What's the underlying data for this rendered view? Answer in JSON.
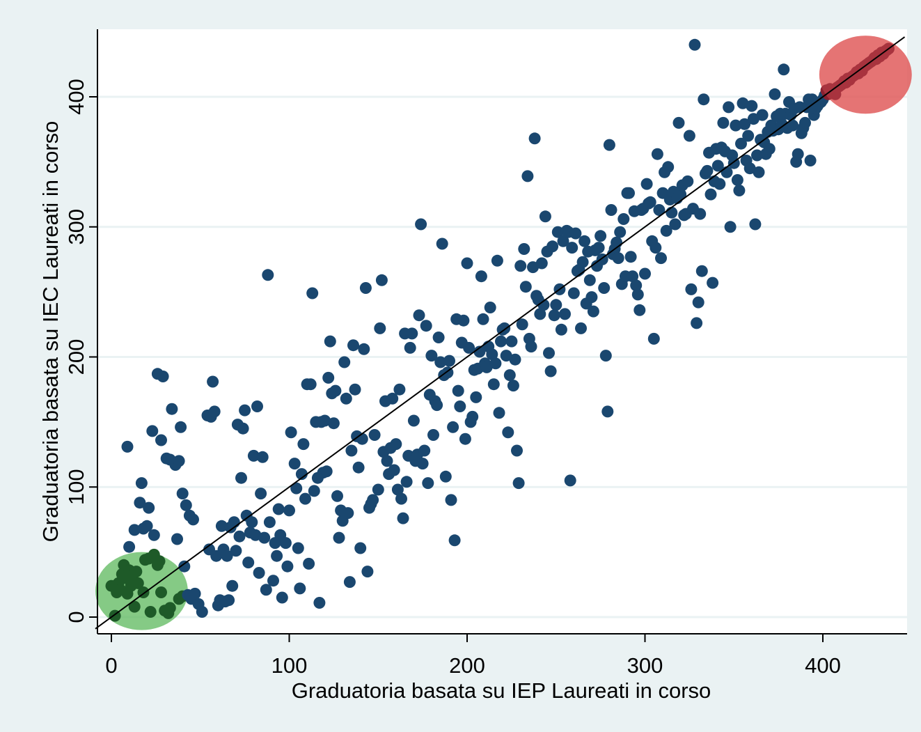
{
  "chart_data": {
    "type": "scatter",
    "title": "",
    "xlabel": "Graduatoria basata su IEP Laureati in corso",
    "ylabel": "Graduatoria basata su IEC Laureati in corso",
    "xlim": [
      -9,
      446
    ],
    "ylim": [
      -13,
      453
    ],
    "xticks": [
      0,
      100,
      200,
      300,
      400
    ],
    "yticks": [
      0,
      100,
      200,
      300,
      400
    ],
    "grid": true,
    "legend": "none",
    "colors": {
      "background": "#eaf2f3",
      "plot_area": "#ffffff",
      "points": "#1a476f",
      "gridline": "#eaf2f3",
      "reference_line": "#000000",
      "low_cluster_fill": "#5cb85c",
      "low_cluster_points": "#1e5a28",
      "high_cluster_fill": "#e05a5a",
      "high_cluster_points": "#8a2030"
    },
    "reference_line": {
      "x": [
        -9,
        446
      ],
      "y": [
        -9,
        446
      ]
    },
    "highlights": [
      {
        "name": "low-rank-cluster",
        "cx": 17,
        "cy": 20,
        "rx": 26,
        "ry": 30
      },
      {
        "name": "high-rank-cluster",
        "cx": 424,
        "cy": 417,
        "rx": 26,
        "ry": 30
      }
    ],
    "points": [
      [
        0,
        24
      ],
      [
        2,
        1
      ],
      [
        3,
        19
      ],
      [
        4,
        26
      ],
      [
        5,
        21
      ],
      [
        6,
        33
      ],
      [
        7,
        40
      ],
      [
        8,
        30
      ],
      [
        9,
        18
      ],
      [
        10,
        36
      ],
      [
        11,
        24
      ],
      [
        12,
        32
      ],
      [
        13,
        8
      ],
      [
        14,
        35
      ],
      [
        15,
        26
      ],
      [
        18,
        19
      ],
      [
        19,
        44
      ],
      [
        21,
        45
      ],
      [
        22,
        4
      ],
      [
        24,
        48
      ],
      [
        26,
        40
      ],
      [
        27,
        43
      ],
      [
        28,
        19
      ],
      [
        30,
        5
      ],
      [
        32,
        3
      ],
      [
        33,
        7
      ],
      [
        38,
        14
      ],
      [
        40,
        16
      ],
      [
        41,
        39
      ],
      [
        43,
        17
      ],
      [
        45,
        14
      ],
      [
        47,
        18
      ],
      [
        49,
        10
      ],
      [
        51,
        4
      ],
      [
        10,
        54
      ],
      [
        13,
        67
      ],
      [
        16,
        88
      ],
      [
        17,
        103
      ],
      [
        18,
        68
      ],
      [
        20,
        70
      ],
      [
        21,
        84
      ],
      [
        23,
        143
      ],
      [
        24,
        63
      ],
      [
        26,
        187
      ],
      [
        28,
        136
      ],
      [
        29,
        185
      ],
      [
        31,
        122
      ],
      [
        33,
        121
      ],
      [
        34,
        160
      ],
      [
        36,
        117
      ],
      [
        37,
        60
      ],
      [
        38,
        120
      ],
      [
        39,
        146
      ],
      [
        40,
        95
      ],
      [
        42,
        86
      ],
      [
        44,
        78
      ],
      [
        46,
        75
      ],
      [
        9,
        131
      ],
      [
        54,
        155
      ],
      [
        55,
        52
      ],
      [
        56,
        154
      ],
      [
        57,
        181
      ],
      [
        58,
        158
      ],
      [
        59,
        47
      ],
      [
        60,
        9
      ],
      [
        61,
        13
      ],
      [
        62,
        70
      ],
      [
        63,
        52
      ],
      [
        64,
        12
      ],
      [
        65,
        47
      ],
      [
        66,
        13
      ],
      [
        67,
        69
      ],
      [
        68,
        24
      ],
      [
        69,
        73
      ],
      [
        70,
        51
      ],
      [
        71,
        148
      ],
      [
        72,
        62
      ],
      [
        73,
        107
      ],
      [
        74,
        145
      ],
      [
        75,
        159
      ],
      [
        76,
        78
      ],
      [
        77,
        42
      ],
      [
        78,
        65
      ],
      [
        79,
        73
      ],
      [
        80,
        124
      ],
      [
        81,
        63
      ],
      [
        82,
        162
      ],
      [
        83,
        34
      ],
      [
        84,
        95
      ],
      [
        85,
        123
      ],
      [
        86,
        61
      ],
      [
        87,
        21
      ],
      [
        88,
        263
      ],
      [
        89,
        73
      ],
      [
        91,
        28
      ],
      [
        92,
        57
      ],
      [
        93,
        47
      ],
      [
        94,
        83
      ],
      [
        95,
        63
      ],
      [
        96,
        15
      ],
      [
        98,
        57
      ],
      [
        99,
        39
      ],
      [
        100,
        82
      ],
      [
        101,
        142
      ],
      [
        103,
        118
      ],
      [
        104,
        99
      ],
      [
        105,
        53
      ],
      [
        106,
        22
      ],
      [
        107,
        110
      ],
      [
        108,
        133
      ],
      [
        109,
        91
      ],
      [
        110,
        179
      ],
      [
        111,
        41
      ],
      [
        112,
        179
      ],
      [
        113,
        249
      ],
      [
        114,
        97
      ],
      [
        115,
        150
      ],
      [
        116,
        107
      ],
      [
        117,
        11
      ],
      [
        118,
        150
      ],
      [
        119,
        111
      ],
      [
        120,
        151
      ],
      [
        121,
        112
      ],
      [
        122,
        184
      ],
      [
        123,
        212
      ],
      [
        124,
        172
      ],
      [
        125,
        149
      ],
      [
        126,
        174
      ],
      [
        127,
        93
      ],
      [
        128,
        61
      ],
      [
        129,
        82
      ],
      [
        130,
        74
      ],
      [
        131,
        196
      ],
      [
        132,
        168
      ],
      [
        133,
        80
      ],
      [
        134,
        27
      ],
      [
        135,
        128
      ],
      [
        136,
        209
      ],
      [
        137,
        175
      ],
      [
        138,
        139
      ],
      [
        139,
        115
      ],
      [
        140,
        53
      ],
      [
        141,
        137
      ],
      [
        142,
        206
      ],
      [
        143,
        253
      ],
      [
        144,
        35
      ],
      [
        145,
        84
      ],
      [
        146,
        87
      ],
      [
        147,
        90
      ],
      [
        148,
        140
      ],
      [
        150,
        98
      ],
      [
        151,
        222
      ],
      [
        152,
        259
      ],
      [
        153,
        127
      ],
      [
        154,
        166
      ],
      [
        155,
        120
      ],
      [
        156,
        110
      ],
      [
        157,
        130
      ],
      [
        158,
        168
      ],
      [
        159,
        113
      ],
      [
        160,
        133
      ],
      [
        161,
        98
      ],
      [
        162,
        175
      ],
      [
        163,
        91
      ],
      [
        164,
        76
      ],
      [
        165,
        218
      ],
      [
        166,
        104
      ],
      [
        167,
        124
      ],
      [
        168,
        207
      ],
      [
        169,
        218
      ],
      [
        170,
        151
      ],
      [
        171,
        120
      ],
      [
        172,
        125
      ],
      [
        173,
        232
      ],
      [
        174,
        302
      ],
      [
        175,
        118
      ],
      [
        176,
        128
      ],
      [
        177,
        224
      ],
      [
        178,
        103
      ],
      [
        179,
        171
      ],
      [
        180,
        201
      ],
      [
        181,
        140
      ],
      [
        182,
        166
      ],
      [
        183,
        163
      ],
      [
        184,
        215
      ],
      [
        185,
        196
      ],
      [
        186,
        287
      ],
      [
        187,
        186
      ],
      [
        188,
        108
      ],
      [
        189,
        188
      ],
      [
        190,
        197
      ],
      [
        191,
        90
      ],
      [
        192,
        146
      ],
      [
        193,
        59
      ],
      [
        194,
        229
      ],
      [
        195,
        174
      ],
      [
        196,
        162
      ],
      [
        197,
        211
      ],
      [
        198,
        228
      ],
      [
        199,
        137
      ],
      [
        200,
        272
      ],
      [
        201,
        207
      ],
      [
        202,
        150
      ],
      [
        203,
        154
      ],
      [
        204,
        190
      ],
      [
        205,
        169
      ],
      [
        206,
        191
      ],
      [
        207,
        204
      ],
      [
        208,
        262
      ],
      [
        209,
        229
      ],
      [
        210,
        195
      ],
      [
        211,
        192
      ],
      [
        212,
        208
      ],
      [
        213,
        238
      ],
      [
        214,
        202
      ],
      [
        215,
        179
      ],
      [
        216,
        195
      ],
      [
        217,
        274
      ],
      [
        218,
        157
      ],
      [
        219,
        212
      ],
      [
        220,
        221
      ],
      [
        221,
        222
      ],
      [
        222,
        201
      ],
      [
        223,
        142
      ],
      [
        224,
        186
      ],
      [
        225,
        212
      ],
      [
        226,
        178
      ],
      [
        227,
        198
      ],
      [
        228,
        128
      ],
      [
        229,
        103
      ],
      [
        230,
        270
      ],
      [
        231,
        225
      ],
      [
        232,
        283
      ],
      [
        233,
        254
      ],
      [
        234,
        339
      ],
      [
        235,
        214
      ],
      [
        236,
        208
      ],
      [
        237,
        269
      ],
      [
        238,
        368
      ],
      [
        239,
        247
      ],
      [
        240,
        244
      ],
      [
        241,
        233
      ],
      [
        242,
        272
      ],
      [
        243,
        240
      ],
      [
        244,
        308
      ],
      [
        245,
        281
      ],
      [
        246,
        203
      ],
      [
        247,
        189
      ],
      [
        248,
        285
      ],
      [
        249,
        232
      ],
      [
        250,
        240
      ],
      [
        251,
        296
      ],
      [
        252,
        252
      ],
      [
        253,
        221
      ],
      [
        254,
        289
      ],
      [
        255,
        233
      ],
      [
        256,
        297
      ],
      [
        257,
        296
      ],
      [
        258,
        105
      ],
      [
        259,
        284
      ],
      [
        260,
        249
      ],
      [
        261,
        295
      ],
      [
        262,
        266
      ],
      [
        263,
        267
      ],
      [
        264,
        222
      ],
      [
        265,
        273
      ],
      [
        266,
        289
      ],
      [
        267,
        241
      ],
      [
        268,
        281
      ],
      [
        269,
        259
      ],
      [
        270,
        246
      ],
      [
        271,
        235
      ],
      [
        272,
        282
      ],
      [
        273,
        270
      ],
      [
        274,
        284
      ],
      [
        275,
        293
      ],
      [
        276,
        275
      ],
      [
        277,
        253
      ],
      [
        278,
        201
      ],
      [
        279,
        158
      ],
      [
        280,
        363
      ],
      [
        281,
        313
      ],
      [
        282,
        279
      ],
      [
        283,
        283
      ],
      [
        284,
        288
      ],
      [
        285,
        276
      ],
      [
        286,
        296
      ],
      [
        287,
        256
      ],
      [
        288,
        306
      ],
      [
        289,
        262
      ],
      [
        290,
        326
      ],
      [
        291,
        326
      ],
      [
        292,
        277
      ],
      [
        293,
        262
      ],
      [
        294,
        312
      ],
      [
        295,
        255
      ],
      [
        296,
        248
      ],
      [
        297,
        236
      ],
      [
        298,
        313
      ],
      [
        299,
        314
      ],
      [
        300,
        264
      ],
      [
        301,
        333
      ],
      [
        302,
        318
      ],
      [
        303,
        319
      ],
      [
        304,
        289
      ],
      [
        305,
        214
      ],
      [
        306,
        284
      ],
      [
        307,
        356
      ],
      [
        308,
        313
      ],
      [
        309,
        276
      ],
      [
        310,
        326
      ],
      [
        311,
        342
      ],
      [
        312,
        297
      ],
      [
        313,
        346
      ],
      [
        314,
        321
      ],
      [
        315,
        311
      ],
      [
        316,
        327
      ],
      [
        317,
        302
      ],
      [
        318,
        322
      ],
      [
        319,
        380
      ],
      [
        320,
        325
      ],
      [
        321,
        332
      ],
      [
        322,
        309
      ],
      [
        323,
        310
      ],
      [
        324,
        335
      ],
      [
        325,
        370
      ],
      [
        326,
        252
      ],
      [
        327,
        314
      ],
      [
        328,
        440
      ],
      [
        329,
        226
      ],
      [
        330,
        242
      ],
      [
        331,
        310
      ],
      [
        332,
        266
      ],
      [
        333,
        398
      ],
      [
        334,
        341
      ],
      [
        335,
        343
      ],
      [
        336,
        357
      ],
      [
        337,
        325
      ],
      [
        338,
        257
      ],
      [
        339,
        335
      ],
      [
        340,
        360
      ],
      [
        341,
        347
      ],
      [
        342,
        333
      ],
      [
        343,
        361
      ],
      [
        344,
        380
      ],
      [
        345,
        358
      ],
      [
        346,
        342
      ],
      [
        347,
        392
      ],
      [
        348,
        300
      ],
      [
        349,
        355
      ],
      [
        350,
        349
      ],
      [
        351,
        378
      ],
      [
        352,
        336
      ],
      [
        353,
        328
      ],
      [
        354,
        364
      ],
      [
        355,
        395
      ],
      [
        356,
        379
      ],
      [
        357,
        351
      ],
      [
        358,
        370
      ],
      [
        359,
        345
      ],
      [
        360,
        393
      ],
      [
        361,
        383
      ],
      [
        362,
        302
      ],
      [
        363,
        355
      ],
      [
        364,
        342
      ],
      [
        365,
        367
      ],
      [
        366,
        386
      ],
      [
        367,
        365
      ],
      [
        368,
        356
      ],
      [
        369,
        373
      ],
      [
        370,
        360
      ],
      [
        371,
        378
      ],
      [
        372,
        374
      ],
      [
        373,
        402
      ],
      [
        374,
        385
      ],
      [
        375,
        375
      ],
      [
        376,
        387
      ],
      [
        377,
        379
      ],
      [
        378,
        421
      ],
      [
        379,
        387
      ],
      [
        380,
        376
      ],
      [
        381,
        396
      ],
      [
        382,
        386
      ],
      [
        383,
        378
      ],
      [
        384,
        391
      ],
      [
        385,
        350
      ],
      [
        386,
        356
      ],
      [
        387,
        392
      ],
      [
        388,
        372
      ],
      [
        389,
        376
      ],
      [
        390,
        380
      ],
      [
        391,
        392
      ],
      [
        392,
        398
      ],
      [
        393,
        351
      ],
      [
        394,
        398
      ],
      [
        395,
        386
      ],
      [
        396,
        391
      ],
      [
        397,
        393
      ],
      [
        398,
        395
      ],
      [
        399,
        396
      ],
      [
        400,
        398
      ],
      [
        401,
        401
      ],
      [
        402,
        405
      ],
      [
        403,
        402
      ],
      [
        404,
        406
      ],
      [
        405,
        403
      ],
      [
        406,
        404
      ],
      [
        407,
        402
      ],
      [
        408,
        407
      ],
      [
        409,
        408
      ],
      [
        410,
        409
      ],
      [
        411,
        410
      ],
      [
        412,
        412
      ],
      [
        413,
        411
      ],
      [
        414,
        414
      ],
      [
        415,
        413
      ],
      [
        416,
        415
      ],
      [
        417,
        416
      ],
      [
        418,
        417
      ],
      [
        419,
        419
      ],
      [
        420,
        418
      ],
      [
        421,
        421
      ],
      [
        422,
        420
      ],
      [
        423,
        423
      ],
      [
        424,
        424
      ],
      [
        425,
        425
      ],
      [
        426,
        426
      ],
      [
        427,
        427
      ],
      [
        428,
        428
      ],
      [
        429,
        430
      ],
      [
        430,
        429
      ],
      [
        431,
        432
      ],
      [
        432,
        431
      ],
      [
        433,
        434
      ],
      [
        434,
        433
      ],
      [
        435,
        435
      ],
      [
        436,
        436
      ],
      [
        437,
        437
      ]
    ]
  }
}
